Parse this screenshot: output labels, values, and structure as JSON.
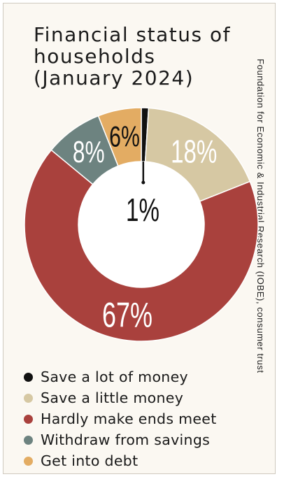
{
  "title_lines": [
    "Financial status of",
    "households",
    "(January 2024)"
  ],
  "source": "Foundation for Economic & Industrial Research (IOBE), consumer trust",
  "chart_data": {
    "type": "pie",
    "variant": "donut",
    "title": "Financial status of households (January 2024)",
    "unit": "%",
    "categories": [
      "Save a lot of money",
      "Save a little money",
      "Hardly make ends meet",
      "Withdraw from savings",
      "Get into debt"
    ],
    "values": [
      1,
      18,
      67,
      8,
      6
    ],
    "colors": [
      "#111111",
      "#d6c8a3",
      "#a9413d",
      "#6d8380",
      "#e3ac63"
    ],
    "labels": [
      "1%",
      "18%",
      "67%",
      "8%",
      "6%"
    ],
    "legend_position": "bottom",
    "start": "top",
    "direction": "clockwise"
  }
}
